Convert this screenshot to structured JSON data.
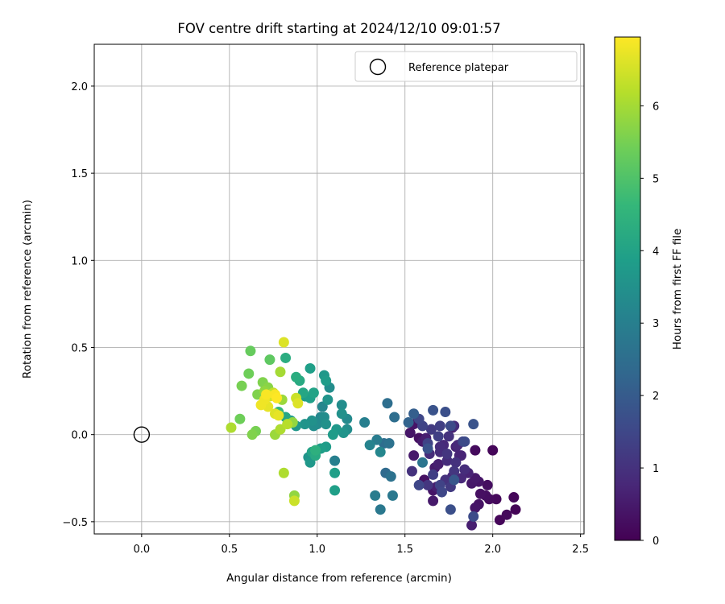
{
  "chart_data": {
    "type": "scatter",
    "title": "FOV centre drift starting at 2024/12/10 09:01:57",
    "xlabel": "Angular distance from reference (arcmin)",
    "ylabel": "Rotation from reference (arcmin)",
    "xlim": [
      -0.27,
      2.52
    ],
    "ylim": [
      -0.57,
      2.24
    ],
    "xticks": [
      0.0,
      0.5,
      1.0,
      1.5,
      2.0,
      2.5
    ],
    "xtick_labels": [
      "0.0",
      "0.5",
      "1.0",
      "1.5",
      "2.0",
      "2.5"
    ],
    "yticks": [
      -0.5,
      0.0,
      0.5,
      1.0,
      1.5,
      2.0
    ],
    "ytick_labels": [
      "−0.5",
      "0.0",
      "0.5",
      "1.0",
      "1.5",
      "2.0"
    ],
    "grid": true,
    "legend": {
      "position": "top-right",
      "entries": [
        {
          "label": "Reference platepar",
          "marker": "open-circle"
        }
      ]
    },
    "reference_point": {
      "x": 0.0,
      "y": 0.0
    },
    "colorbar": {
      "label": "Hours from first FF file",
      "range": [
        0,
        6.95
      ],
      "ticks": [
        0,
        1,
        2,
        3,
        4,
        5,
        6
      ],
      "tick_labels": [
        "0",
        "1",
        "2",
        "3",
        "4",
        "5",
        "6"
      ],
      "colormap": "viridis"
    },
    "series": [
      {
        "points": [
          [
            2.0,
            -0.09,
            0.1
          ],
          [
            1.9,
            -0.09,
            0.2
          ],
          [
            2.12,
            -0.36,
            0.1
          ],
          [
            2.13,
            -0.43,
            0.05
          ],
          [
            2.08,
            -0.46,
            0.15
          ],
          [
            2.04,
            -0.49,
            0.1
          ],
          [
            2.02,
            -0.37,
            0.15
          ],
          [
            1.98,
            -0.37,
            0.2
          ],
          [
            1.96,
            -0.35,
            0.25
          ],
          [
            1.93,
            -0.34,
            0.3
          ],
          [
            1.92,
            -0.4,
            0.35
          ],
          [
            1.9,
            -0.42,
            0.4
          ],
          [
            1.97,
            -0.29,
            0.25
          ],
          [
            1.92,
            -0.27,
            0.4
          ],
          [
            1.9,
            -0.25,
            0.5
          ],
          [
            1.88,
            -0.28,
            0.45
          ],
          [
            1.88,
            -0.52,
            0.6
          ],
          [
            1.89,
            -0.47,
            1.6
          ],
          [
            1.86,
            -0.22,
            0.7
          ],
          [
            1.84,
            -0.2,
            0.9
          ],
          [
            1.82,
            -0.25,
            0.8
          ],
          [
            1.79,
            -0.16,
            1.0
          ],
          [
            1.78,
            -0.21,
            1.1
          ],
          [
            1.79,
            -0.07,
            0.7
          ],
          [
            1.75,
            -0.01,
            1.0
          ],
          [
            1.77,
            0.04,
            0.6
          ],
          [
            1.84,
            -0.04,
            1.6
          ],
          [
            1.89,
            0.06,
            1.8
          ],
          [
            1.8,
            -0.06,
            0.8
          ],
          [
            1.81,
            -0.12,
            0.7
          ],
          [
            1.74,
            -0.15,
            0.9
          ],
          [
            1.72,
            -0.06,
            0.8
          ],
          [
            1.7,
            -0.1,
            0.9
          ],
          [
            1.69,
            -0.17,
            0.6
          ],
          [
            1.67,
            -0.19,
            0.5
          ],
          [
            1.66,
            -0.23,
            1.3
          ],
          [
            1.73,
            -0.26,
            1.0
          ],
          [
            1.77,
            -0.24,
            0.8
          ],
          [
            1.7,
            -0.29,
            1.4
          ],
          [
            1.76,
            -0.3,
            1.2
          ],
          [
            1.71,
            -0.33,
            1.5
          ],
          [
            1.76,
            -0.43,
            1.7
          ],
          [
            1.68,
            -0.3,
            0.6
          ],
          [
            1.66,
            -0.32,
            0.4
          ],
          [
            1.66,
            -0.38,
            0.5
          ],
          [
            1.63,
            -0.29,
            1.1
          ],
          [
            1.61,
            -0.26,
            0.3
          ],
          [
            1.58,
            -0.29,
            1.5
          ],
          [
            1.54,
            -0.21,
            1.0
          ],
          [
            1.6,
            -0.16,
            2.7
          ],
          [
            1.55,
            -0.12,
            0.5
          ],
          [
            1.64,
            -0.11,
            0.9
          ],
          [
            1.63,
            -0.08,
            1.8
          ],
          [
            1.62,
            -0.02,
            0.6
          ],
          [
            1.6,
            -0.04,
            0.5
          ],
          [
            1.58,
            -0.02,
            0.3
          ],
          [
            1.53,
            0.01,
            0.4
          ],
          [
            1.55,
            0.06,
            0.4
          ],
          [
            1.58,
            0.09,
            1.5
          ],
          [
            1.55,
            0.12,
            2.1
          ],
          [
            1.52,
            0.07,
            2.2
          ],
          [
            1.6,
            0.05,
            1.4
          ],
          [
            1.65,
            0.03,
            1.2
          ],
          [
            1.66,
            0.14,
            1.8
          ],
          [
            1.7,
            0.05,
            1.3
          ],
          [
            1.73,
            0.13,
            1.7
          ],
          [
            1.76,
            0.05,
            1.6
          ],
          [
            1.78,
            0.05,
            0.9
          ],
          [
            1.83,
            -0.04,
            1.4
          ],
          [
            1.82,
            -0.12,
            0.7
          ],
          [
            1.74,
            -0.11,
            1.1
          ],
          [
            1.7,
            -0.07,
            0.9
          ],
          [
            1.69,
            -0.01,
            1.3
          ],
          [
            1.63,
            -0.05,
            1.4
          ],
          [
            1.78,
            -0.26,
            1.9
          ],
          [
            1.4,
            0.18,
            2.5
          ],
          [
            1.44,
            0.1,
            2.5
          ],
          [
            1.38,
            -0.05,
            2.5
          ],
          [
            1.41,
            -0.05,
            2.6
          ],
          [
            1.39,
            -0.22,
            2.4
          ],
          [
            1.42,
            -0.24,
            2.6
          ],
          [
            1.43,
            -0.35,
            2.8
          ],
          [
            1.33,
            -0.35,
            2.9
          ],
          [
            1.36,
            -0.43,
            2.8
          ],
          [
            1.34,
            -0.03,
            2.9
          ],
          [
            1.36,
            -0.1,
            3.2
          ],
          [
            1.3,
            -0.06,
            3.1
          ],
          [
            1.27,
            0.07,
            3.0
          ],
          [
            1.14,
            0.17,
            3.4
          ],
          [
            1.17,
            0.09,
            3.3
          ],
          [
            1.14,
            0.12,
            3.5
          ],
          [
            1.17,
            0.03,
            3.4
          ],
          [
            1.15,
            0.01,
            3.6
          ],
          [
            1.11,
            0.03,
            3.7
          ],
          [
            1.09,
            0.0,
            3.8
          ],
          [
            1.1,
            -0.15,
            3.0
          ],
          [
            1.1,
            -0.22,
            3.9
          ],
          [
            1.1,
            -0.32,
            3.9
          ],
          [
            1.05,
            -0.07,
            3.8
          ],
          [
            1.02,
            -0.08,
            3.9
          ],
          [
            1.0,
            0.06,
            3.3
          ],
          [
            1.02,
            0.1,
            3.2
          ],
          [
            1.03,
            0.16,
            3.2
          ],
          [
            1.04,
            0.1,
            3.4
          ],
          [
            1.05,
            0.06,
            3.5
          ],
          [
            1.06,
            0.2,
            3.6
          ],
          [
            1.07,
            0.27,
            3.4
          ],
          [
            1.04,
            0.34,
            3.7
          ],
          [
            1.05,
            0.31,
            3.8
          ],
          [
            0.96,
            0.38,
            3.9
          ],
          [
            0.98,
            0.24,
            4.0
          ],
          [
            0.96,
            0.21,
            3.9
          ],
          [
            0.93,
            0.22,
            3.8
          ],
          [
            0.92,
            0.24,
            4.1
          ],
          [
            0.88,
            0.33,
            4.3
          ],
          [
            0.9,
            0.31,
            4.2
          ],
          [
            0.82,
            0.44,
            4.3
          ],
          [
            0.98,
            0.05,
            3.4
          ],
          [
            0.97,
            0.08,
            3.5
          ],
          [
            0.93,
            0.06,
            3.6
          ],
          [
            0.88,
            0.05,
            3.7
          ],
          [
            0.85,
            0.08,
            3.8
          ],
          [
            0.82,
            0.1,
            4.1
          ],
          [
            0.95,
            -0.13,
            3.6
          ],
          [
            0.96,
            -0.16,
            3.7
          ],
          [
            0.97,
            -0.1,
            4.0
          ],
          [
            0.99,
            -0.12,
            4.2
          ],
          [
            0.99,
            -0.09,
            4.4
          ],
          [
            0.78,
            0.13,
            4.6
          ],
          [
            0.62,
            0.48,
            5.3
          ],
          [
            0.73,
            0.43,
            5.2
          ],
          [
            0.61,
            0.35,
            5.4
          ],
          [
            0.57,
            0.28,
            5.5
          ],
          [
            0.69,
            0.3,
            5.6
          ],
          [
            0.66,
            0.23,
            5.6
          ],
          [
            0.7,
            0.25,
            5.8
          ],
          [
            0.72,
            0.27,
            5.7
          ],
          [
            0.65,
            0.02,
            5.5
          ],
          [
            0.63,
            0.0,
            5.6
          ],
          [
            0.56,
            0.09,
            5.4
          ],
          [
            0.51,
            0.04,
            6.1
          ],
          [
            0.76,
            0.0,
            5.9
          ],
          [
            0.79,
            0.03,
            6.1
          ],
          [
            0.8,
            0.2,
            5.9
          ],
          [
            0.75,
            0.24,
            6.3
          ],
          [
            0.73,
            0.22,
            6.5
          ],
          [
            0.72,
            0.16,
            6.7
          ],
          [
            0.7,
            0.2,
            6.8
          ],
          [
            0.71,
            0.23,
            6.9
          ],
          [
            0.76,
            0.12,
            6.6
          ],
          [
            0.78,
            0.11,
            6.7
          ],
          [
            0.79,
            0.36,
            6.0
          ],
          [
            0.81,
            0.53,
            6.6
          ],
          [
            0.83,
            0.06,
            6.2
          ],
          [
            0.86,
            0.07,
            5.8
          ],
          [
            0.88,
            0.21,
            6.4
          ],
          [
            0.89,
            0.18,
            6.6
          ],
          [
            0.87,
            -0.35,
            5.8
          ],
          [
            0.87,
            -0.38,
            6.4
          ],
          [
            0.81,
            -0.22,
            6.1
          ],
          [
            0.76,
            0.23,
            6.9
          ],
          [
            0.68,
            0.17,
            6.8
          ],
          [
            0.77,
            0.21,
            6.95
          ]
        ]
      }
    ]
  }
}
